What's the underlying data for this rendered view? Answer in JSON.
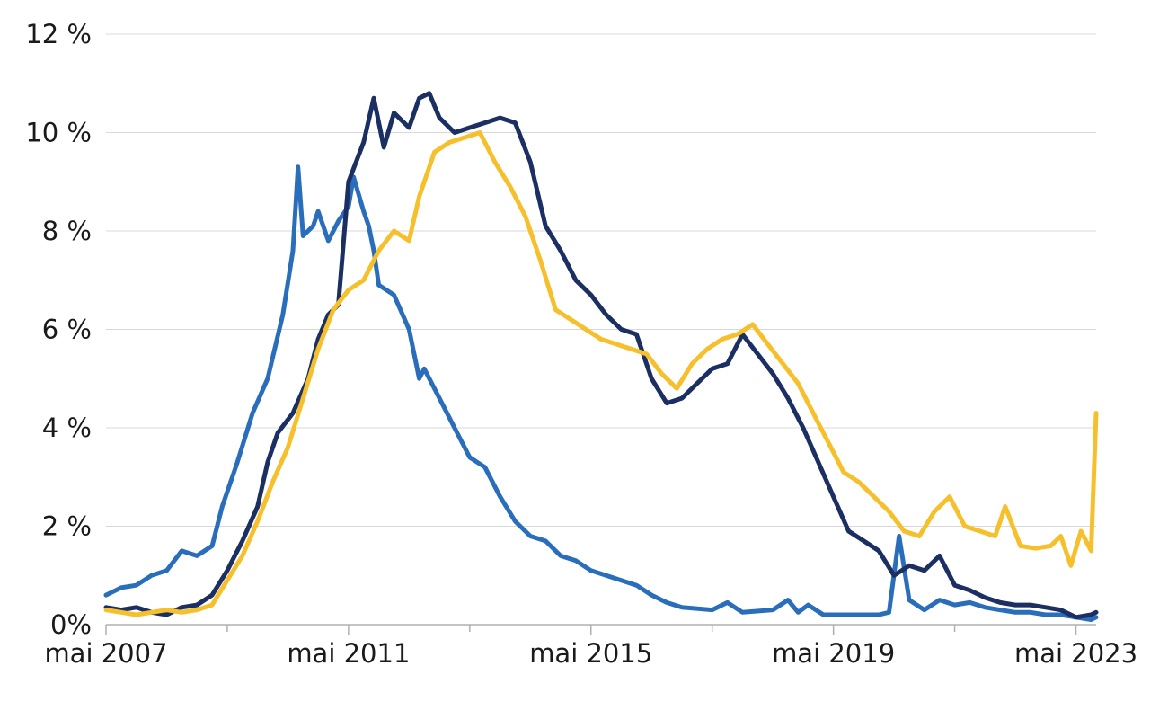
{
  "chart_data": {
    "type": "line",
    "title": "",
    "xlabel": "",
    "ylabel": "",
    "ylim": [
      0,
      12
    ],
    "xlim": [
      "2007-05",
      "2023-09"
    ],
    "grid": true,
    "legend": "none",
    "y_ticks": [
      {
        "value": 0,
        "label": "0%"
      },
      {
        "value": 2,
        "label": "2 %"
      },
      {
        "value": 4,
        "label": "4 %"
      },
      {
        "value": 6,
        "label": "6 %"
      },
      {
        "value": 8,
        "label": "8 %"
      },
      {
        "value": 10,
        "label": "10 %"
      },
      {
        "value": 12,
        "label": "12 %"
      }
    ],
    "x_ticks": [
      {
        "value": "2007-05",
        "label": "mai 2007"
      },
      {
        "value": "2011-05",
        "label": "mai 2011"
      },
      {
        "value": "2015-05",
        "label": "mai 2015"
      },
      {
        "value": "2019-05",
        "label": "mai 2019"
      },
      {
        "value": "2023-05",
        "label": "mai 2023"
      }
    ],
    "x_minor_ticks": [
      "2009-05",
      "2013-05",
      "2017-05",
      "2021-05"
    ],
    "series": [
      {
        "color": "#2a6ebb",
        "points": [
          [
            "2007-05",
            0.6
          ],
          [
            "2007-08",
            0.75
          ],
          [
            "2007-11",
            0.8
          ],
          [
            "2008-02",
            1.0
          ],
          [
            "2008-05",
            1.1
          ],
          [
            "2008-08",
            1.5
          ],
          [
            "2008-11",
            1.4
          ],
          [
            "2009-02",
            1.6
          ],
          [
            "2009-04",
            2.4
          ],
          [
            "2009-07",
            3.3
          ],
          [
            "2009-10",
            4.3
          ],
          [
            "2010-01",
            5.0
          ],
          [
            "2010-04",
            6.3
          ],
          [
            "2010-06",
            7.6
          ],
          [
            "2010-07",
            9.3
          ],
          [
            "2010-08",
            7.9
          ],
          [
            "2010-10",
            8.1
          ],
          [
            "2010-11",
            8.4
          ],
          [
            "2011-01",
            7.8
          ],
          [
            "2011-03",
            8.2
          ],
          [
            "2011-05",
            8.5
          ],
          [
            "2011-06",
            9.1
          ],
          [
            "2011-08",
            8.4
          ],
          [
            "2011-09",
            8.1
          ],
          [
            "2011-10",
            7.6
          ],
          [
            "2011-11",
            6.9
          ],
          [
            "2012-02",
            6.7
          ],
          [
            "2012-05",
            6.0
          ],
          [
            "2012-07",
            5.0
          ],
          [
            "2012-08",
            5.2
          ],
          [
            "2012-11",
            4.6
          ],
          [
            "2013-02",
            4.0
          ],
          [
            "2013-05",
            3.4
          ],
          [
            "2013-08",
            3.2
          ],
          [
            "2013-11",
            2.6
          ],
          [
            "2014-02",
            2.1
          ],
          [
            "2014-05",
            1.8
          ],
          [
            "2014-08",
            1.7
          ],
          [
            "2014-11",
            1.4
          ],
          [
            "2015-02",
            1.3
          ],
          [
            "2015-05",
            1.1
          ],
          [
            "2015-08",
            1.0
          ],
          [
            "2015-11",
            0.9
          ],
          [
            "2016-02",
            0.8
          ],
          [
            "2016-05",
            0.6
          ],
          [
            "2016-08",
            0.45
          ],
          [
            "2016-11",
            0.35
          ],
          [
            "2017-05",
            0.3
          ],
          [
            "2017-08",
            0.45
          ],
          [
            "2017-11",
            0.25
          ],
          [
            "2018-05",
            0.3
          ],
          [
            "2018-08",
            0.5
          ],
          [
            "2018-10",
            0.25
          ],
          [
            "2018-12",
            0.4
          ],
          [
            "2019-03",
            0.2
          ],
          [
            "2019-05",
            0.2
          ],
          [
            "2019-08",
            0.2
          ],
          [
            "2020-02",
            0.2
          ],
          [
            "2020-04",
            0.25
          ],
          [
            "2020-06",
            1.8
          ],
          [
            "2020-08",
            0.5
          ],
          [
            "2020-11",
            0.3
          ],
          [
            "2021-02",
            0.5
          ],
          [
            "2021-05",
            0.4
          ],
          [
            "2021-08",
            0.45
          ],
          [
            "2021-11",
            0.35
          ],
          [
            "2022-02",
            0.3
          ],
          [
            "2022-05",
            0.25
          ],
          [
            "2022-08",
            0.25
          ],
          [
            "2022-11",
            0.2
          ],
          [
            "2023-02",
            0.2
          ],
          [
            "2023-05",
            0.15
          ],
          [
            "2023-08",
            0.1
          ],
          [
            "2023-09",
            0.15
          ]
        ]
      },
      {
        "color": "#1b2f63",
        "points": [
          [
            "2007-05",
            0.35
          ],
          [
            "2007-08",
            0.3
          ],
          [
            "2007-11",
            0.35
          ],
          [
            "2008-02",
            0.25
          ],
          [
            "2008-05",
            0.2
          ],
          [
            "2008-08",
            0.35
          ],
          [
            "2008-11",
            0.4
          ],
          [
            "2009-02",
            0.6
          ],
          [
            "2009-05",
            1.1
          ],
          [
            "2009-08",
            1.7
          ],
          [
            "2009-11",
            2.4
          ],
          [
            "2010-01",
            3.3
          ],
          [
            "2010-03",
            3.9
          ],
          [
            "2010-06",
            4.3
          ],
          [
            "2010-09",
            5.0
          ],
          [
            "2010-11",
            5.8
          ],
          [
            "2011-01",
            6.3
          ],
          [
            "2011-03",
            6.5
          ],
          [
            "2011-05",
            9.0
          ],
          [
            "2011-08",
            9.8
          ],
          [
            "2011-10",
            10.7
          ],
          [
            "2011-12",
            9.7
          ],
          [
            "2012-02",
            10.4
          ],
          [
            "2012-05",
            10.1
          ],
          [
            "2012-07",
            10.7
          ],
          [
            "2012-09",
            10.8
          ],
          [
            "2012-11",
            10.3
          ],
          [
            "2013-02",
            10.0
          ],
          [
            "2013-05",
            10.1
          ],
          [
            "2013-08",
            10.2
          ],
          [
            "2013-11",
            10.3
          ],
          [
            "2014-02",
            10.2
          ],
          [
            "2014-05",
            9.4
          ],
          [
            "2014-08",
            8.1
          ],
          [
            "2014-11",
            7.6
          ],
          [
            "2015-02",
            7.0
          ],
          [
            "2015-05",
            6.7
          ],
          [
            "2015-08",
            6.3
          ],
          [
            "2015-11",
            6.0
          ],
          [
            "2016-02",
            5.9
          ],
          [
            "2016-05",
            5.0
          ],
          [
            "2016-08",
            4.5
          ],
          [
            "2016-11",
            4.6
          ],
          [
            "2017-02",
            4.9
          ],
          [
            "2017-05",
            5.2
          ],
          [
            "2017-08",
            5.3
          ],
          [
            "2017-11",
            5.9
          ],
          [
            "2018-02",
            5.5
          ],
          [
            "2018-05",
            5.1
          ],
          [
            "2018-08",
            4.6
          ],
          [
            "2018-11",
            4.0
          ],
          [
            "2019-02",
            3.3
          ],
          [
            "2019-05",
            2.6
          ],
          [
            "2019-08",
            1.9
          ],
          [
            "2019-11",
            1.7
          ],
          [
            "2020-02",
            1.5
          ],
          [
            "2020-05",
            1.0
          ],
          [
            "2020-08",
            1.2
          ],
          [
            "2020-11",
            1.1
          ],
          [
            "2021-02",
            1.4
          ],
          [
            "2021-05",
            0.8
          ],
          [
            "2021-08",
            0.7
          ],
          [
            "2021-11",
            0.55
          ],
          [
            "2022-02",
            0.45
          ],
          [
            "2022-05",
            0.4
          ],
          [
            "2022-08",
            0.4
          ],
          [
            "2022-11",
            0.35
          ],
          [
            "2023-02",
            0.3
          ],
          [
            "2023-05",
            0.15
          ],
          [
            "2023-08",
            0.2
          ],
          [
            "2023-09",
            0.25
          ]
        ]
      },
      {
        "color": "#f6c02c",
        "points": [
          [
            "2007-05",
            0.3
          ],
          [
            "2007-08",
            0.25
          ],
          [
            "2007-11",
            0.2
          ],
          [
            "2008-02",
            0.25
          ],
          [
            "2008-05",
            0.3
          ],
          [
            "2008-08",
            0.25
          ],
          [
            "2008-11",
            0.3
          ],
          [
            "2009-02",
            0.4
          ],
          [
            "2009-05",
            0.9
          ],
          [
            "2009-08",
            1.4
          ],
          [
            "2009-11",
            2.1
          ],
          [
            "2010-02",
            2.9
          ],
          [
            "2010-05",
            3.6
          ],
          [
            "2010-08",
            4.6
          ],
          [
            "2010-11",
            5.6
          ],
          [
            "2011-02",
            6.4
          ],
          [
            "2011-05",
            6.8
          ],
          [
            "2011-08",
            7.0
          ],
          [
            "2011-11",
            7.6
          ],
          [
            "2012-02",
            8.0
          ],
          [
            "2012-05",
            7.8
          ],
          [
            "2012-07",
            8.7
          ],
          [
            "2012-10",
            9.6
          ],
          [
            "2013-01",
            9.8
          ],
          [
            "2013-04",
            9.9
          ],
          [
            "2013-07",
            10.0
          ],
          [
            "2013-10",
            9.4
          ],
          [
            "2014-01",
            8.9
          ],
          [
            "2014-04",
            8.3
          ],
          [
            "2014-07",
            7.4
          ],
          [
            "2014-10",
            6.4
          ],
          [
            "2015-01",
            6.2
          ],
          [
            "2015-04",
            6.0
          ],
          [
            "2015-07",
            5.8
          ],
          [
            "2015-10",
            5.7
          ],
          [
            "2016-01",
            5.6
          ],
          [
            "2016-04",
            5.5
          ],
          [
            "2016-07",
            5.1
          ],
          [
            "2016-10",
            4.8
          ],
          [
            "2017-01",
            5.3
          ],
          [
            "2017-04",
            5.6
          ],
          [
            "2017-07",
            5.8
          ],
          [
            "2017-10",
            5.9
          ],
          [
            "2018-01",
            6.1
          ],
          [
            "2018-04",
            5.7
          ],
          [
            "2018-07",
            5.3
          ],
          [
            "2018-10",
            4.9
          ],
          [
            "2019-01",
            4.3
          ],
          [
            "2019-04",
            3.7
          ],
          [
            "2019-07",
            3.1
          ],
          [
            "2019-10",
            2.9
          ],
          [
            "2020-01",
            2.6
          ],
          [
            "2020-04",
            2.3
          ],
          [
            "2020-07",
            1.9
          ],
          [
            "2020-10",
            1.8
          ],
          [
            "2021-01",
            2.3
          ],
          [
            "2021-04",
            2.6
          ],
          [
            "2021-07",
            2.0
          ],
          [
            "2021-10",
            1.9
          ],
          [
            "2022-01",
            1.8
          ],
          [
            "2022-03",
            2.4
          ],
          [
            "2022-06",
            1.6
          ],
          [
            "2022-09",
            1.55
          ],
          [
            "2022-12",
            1.6
          ],
          [
            "2023-02",
            1.8
          ],
          [
            "2023-04",
            1.2
          ],
          [
            "2023-06",
            1.9
          ],
          [
            "2023-08",
            1.5
          ],
          [
            "2023-09",
            4.3
          ]
        ]
      }
    ]
  }
}
